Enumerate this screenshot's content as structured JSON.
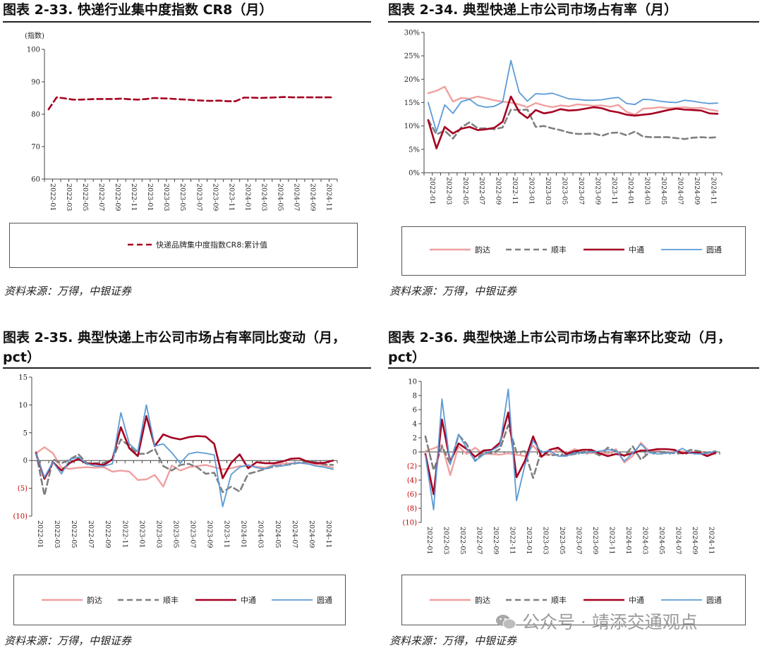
{
  "panels": [
    {
      "title": "图表 2-33. 快递行业集中度指数 CR8（月）",
      "source": "资料来源：万得，中银证券"
    },
    {
      "title": "图表 2-34. 典型快递上市公司市场占有率（月）",
      "source": "资料来源：万得，中银证券"
    },
    {
      "title_line1": "图表 2-35. 典型快递上市公司市场占有率同比变动（月，",
      "title_line2": "pct）",
      "source": "资料来源：万得，中银证券"
    },
    {
      "title_line1": "图表 2-36. 典型快递上市公司市场占有率环比变动（月，",
      "title_line2": "pct）",
      "source": "资料来源：万得，中银证券"
    }
  ],
  "watermark": "公众号 · 靖添交通观点",
  "colors": {
    "yunda": "#f0a0a0",
    "sf": "#7f7f7f",
    "zto": "#a50021",
    "yto": "#5b9bd5",
    "cr8": "#a50021"
  },
  "chart_data": [
    {
      "type": "line",
      "title": "",
      "ylabel": "(指数)",
      "ylim": [
        60,
        100
      ],
      "yticks": [
        "60",
        "70",
        "80",
        "90",
        "100"
      ],
      "x_tick_labels": [
        "2022-01",
        "2022-03",
        "2022-05",
        "2022-07",
        "2022-09",
        "2022-11",
        "2023-01",
        "2023-03",
        "2023-05",
        "2023-07",
        "2023-09",
        "2023-11",
        "2024-01",
        "2024-03",
        "2024-05",
        "2024-07",
        "2024-09",
        "2024-11"
      ],
      "series": [
        {
          "name": "快递品牌集中度指数CR8:累计值",
          "style": "dashed",
          "color": "#a50021",
          "values": [
            81.5,
            85.2,
            84.9,
            84.5,
            84.5,
            84.6,
            84.7,
            84.7,
            84.7,
            84.8,
            84.6,
            84.5,
            84.7,
            85.0,
            84.9,
            84.8,
            84.6,
            84.5,
            84.3,
            84.2,
            84.1,
            84.2,
            84.0,
            84.0,
            85.1,
            85.1,
            85.0,
            85.1,
            85.2,
            85.3,
            85.2,
            85.2,
            85.2,
            85.2,
            85.2,
            85.2
          ]
        }
      ],
      "legend_position": "bottom"
    },
    {
      "type": "line",
      "title": "",
      "ylim": [
        0,
        30
      ],
      "yticks": [
        "0%",
        "5%",
        "10%",
        "15%",
        "20%",
        "25%",
        "30%"
      ],
      "x_tick_labels": [
        "2022-01",
        "2022-03",
        "2022-05",
        "2022-07",
        "2022-09",
        "2022-11",
        "2023-01",
        "2023-03",
        "2023-05",
        "2023-07",
        "2023-09",
        "2023-11",
        "2024-01",
        "2024-03",
        "2024-05",
        "2024-07",
        "2024-09",
        "2024-11"
      ],
      "series": [
        {
          "name": "韵达",
          "style": "solid-light",
          "values": [
            17.0,
            17.5,
            18.4,
            15.2,
            16.0,
            15.8,
            16.3,
            15.9,
            15.5,
            15.2,
            15.0,
            14.6,
            14.0,
            14.9,
            14.4,
            14.0,
            14.4,
            14.2,
            14.6,
            14.5,
            14.3,
            14.4,
            14.1,
            14.5,
            13.0,
            12.4,
            13.7,
            13.8,
            14.0,
            13.8,
            13.9,
            14.0,
            13.8,
            13.9,
            13.5,
            13.2
          ]
        },
        {
          "name": "顺丰",
          "style": "dashed",
          "values": [
            11.3,
            8.2,
            9.0,
            7.3,
            9.7,
            10.8,
            9.5,
            9.5,
            9.3,
            9.7,
            13.5,
            13.4,
            13.5,
            9.8,
            10.0,
            9.5,
            9.1,
            8.6,
            8.3,
            8.3,
            8.4,
            7.9,
            8.5,
            8.6,
            8.0,
            8.8,
            7.7,
            7.6,
            7.6,
            7.6,
            7.4,
            7.2,
            7.5,
            7.6,
            7.5,
            7.6
          ]
        },
        {
          "name": "中通",
          "style": "solid-thick",
          "values": [
            11.2,
            5.2,
            9.8,
            8.4,
            9.4,
            9.8,
            9.1,
            9.3,
            9.6,
            10.9,
            16.3,
            13.0,
            11.7,
            13.4,
            12.7,
            13.0,
            13.6,
            13.3,
            13.4,
            13.7,
            14.0,
            13.8,
            13.2,
            12.9,
            12.4,
            12.2,
            12.4,
            12.6,
            13.0,
            13.4,
            13.7,
            13.5,
            13.4,
            13.3,
            12.7,
            12.6
          ]
        },
        {
          "name": "圆通",
          "style": "solid",
          "values": [
            15.0,
            8.8,
            14.5,
            12.7,
            15.2,
            15.7,
            14.4,
            14.0,
            14.2,
            15.1,
            24.0,
            17.2,
            15.3,
            16.9,
            16.8,
            17.0,
            16.4,
            15.8,
            15.7,
            15.5,
            15.5,
            15.6,
            15.9,
            16.1,
            14.8,
            14.6,
            15.7,
            15.6,
            15.3,
            15.1,
            15.0,
            15.5,
            15.3,
            15.0,
            14.8,
            14.9
          ]
        }
      ],
      "legend_position": "bottom"
    },
    {
      "type": "line",
      "title": "",
      "ylim": [
        -10,
        15
      ],
      "yticks": [
        "(10)",
        "(5)",
        "0",
        "5",
        "10",
        "15"
      ],
      "x_tick_labels": [
        "2022-01",
        "2022-03",
        "2022-05",
        "2022-07",
        "2022-09",
        "2022-11",
        "2023-01",
        "2023-03",
        "2023-05",
        "2023-07",
        "2023-09",
        "2023-11",
        "2024-01",
        "2024-03",
        "2024-05",
        "2024-07",
        "2024-09",
        "2024-11"
      ],
      "series": [
        {
          "name": "韵达",
          "style": "solid-light",
          "values": [
            1.3,
            2.4,
            1.3,
            -1.3,
            -1.5,
            -1.3,
            -1.2,
            -1.3,
            -1.2,
            -2.0,
            -1.8,
            -2.0,
            -3.5,
            -3.4,
            -2.6,
            -4.7,
            -0.9,
            -1.8,
            -1.2,
            -1.0,
            -0.8,
            -1.2,
            -1.6,
            -1.4,
            -1.0,
            -1.0,
            -1.1,
            -1.3,
            -0.8,
            -0.6,
            -0.5,
            -0.4,
            -0.6,
            -0.7,
            -0.9,
            -1.3
          ]
        },
        {
          "name": "顺丰",
          "style": "dashed",
          "values": [
            1.5,
            -6.3,
            0.2,
            -0.5,
            0.2,
            1.1,
            -0.5,
            -0.5,
            -0.4,
            0.2,
            3.8,
            2.6,
            1.2,
            1.2,
            2.1,
            -1.0,
            -1.8,
            -0.8,
            -0.6,
            -1.2,
            -2.4,
            -2.2,
            -5.7,
            -4.7,
            -5.6,
            -2.4,
            -2.0,
            -1.5,
            -1.1,
            -0.9,
            -0.7,
            -0.4,
            -0.2,
            -0.3,
            -0.7,
            -0.8
          ]
        },
        {
          "name": "中通",
          "style": "solid-thick",
          "values": [
            1.3,
            -3.3,
            -0.3,
            -1.8,
            -0.4,
            0.3,
            -0.6,
            -0.6,
            -0.8,
            0.2,
            6.0,
            2.2,
            0.8,
            8.0,
            2.6,
            4.7,
            4.1,
            3.8,
            4.2,
            4.4,
            4.3,
            3.0,
            -3.2,
            -0.4,
            1.1,
            -1.4,
            -0.3,
            -0.5,
            -0.5,
            -0.2,
            0.3,
            0.4,
            -0.2,
            -0.5,
            -0.4,
            0.0
          ]
        },
        {
          "name": "圆通",
          "style": "solid",
          "values": [
            1.2,
            -3.0,
            -0.3,
            -2.4,
            0.2,
            0.6,
            -0.6,
            -1.0,
            -1.0,
            -0.6,
            8.6,
            3.0,
            1.6,
            10.0,
            2.6,
            3.0,
            1.4,
            -0.5,
            1.2,
            1.5,
            1.3,
            1.0,
            -8.3,
            -2.5,
            -1.2,
            -0.8,
            -1.3,
            -1.5,
            -0.9,
            -1.0,
            -0.6,
            -0.4,
            -0.6,
            -1.0,
            -1.2,
            -1.6
          ]
        }
      ],
      "legend_position": "bottom"
    },
    {
      "type": "line",
      "title": "",
      "ylim": [
        -10,
        10
      ],
      "yticks": [
        "(10)",
        "(8)",
        "(6)",
        "(4)",
        "(2)",
        "0",
        "2",
        "4",
        "6",
        "8",
        "10"
      ],
      "x_tick_labels": [
        "2022-01",
        "2022-03",
        "2022-05",
        "2022-07",
        "2022-09",
        "2022-11",
        "2023-01",
        "2023-03",
        "2023-05",
        "2023-07",
        "2023-09",
        "2023-11",
        "2024-01",
        "2024-03",
        "2024-05",
        "2024-07",
        "2024-09",
        "2024-11"
      ],
      "series": [
        {
          "name": "韵达",
          "style": "solid-light",
          "values": [
            0.1,
            0.5,
            1.0,
            -3.3,
            0.8,
            -0.3,
            0.6,
            -0.3,
            -0.3,
            -0.4,
            -0.2,
            -0.4,
            -0.6,
            0.9,
            -0.5,
            -0.4,
            0.4,
            -0.2,
            0.4,
            -0.1,
            -0.2,
            0.1,
            -0.3,
            0.4,
            -1.5,
            -0.6,
            1.3,
            0.1,
            0.2,
            -0.2,
            0.1,
            0.1,
            -0.2,
            0.1,
            -0.4,
            -0.3
          ]
        },
        {
          "name": "顺丰",
          "style": "dashed",
          "values": [
            2.2,
            -2.6,
            0.8,
            -1.7,
            2.4,
            1.1,
            -1.3,
            0.0,
            -0.2,
            0.4,
            3.8,
            -0.1,
            0.1,
            -3.7,
            0.2,
            -0.5,
            -0.4,
            -0.5,
            -0.3,
            0.0,
            0.1,
            -0.5,
            0.6,
            0.1,
            -0.6,
            0.8,
            -1.1,
            -0.1,
            0.0,
            0.0,
            -0.2,
            -0.2,
            0.3,
            0.1,
            -0.1,
            0.1
          ]
        },
        {
          "name": "中通",
          "style": "solid-thick",
          "values": [
            -0.3,
            -6.0,
            4.6,
            -1.4,
            1.2,
            0.4,
            -0.7,
            0.2,
            0.3,
            1.3,
            5.6,
            -3.6,
            -1.3,
            2.2,
            -0.7,
            0.3,
            0.6,
            -0.3,
            0.1,
            0.3,
            0.3,
            -0.2,
            -0.6,
            -0.3,
            -0.5,
            -0.2,
            0.2,
            0.2,
            0.4,
            0.4,
            0.3,
            -0.2,
            -0.1,
            -0.1,
            -0.6,
            -0.1
          ]
        },
        {
          "name": "圆通",
          "style": "solid",
          "values": [
            -0.5,
            -8.2,
            7.5,
            -1.8,
            2.5,
            0.5,
            -1.3,
            -0.4,
            0.2,
            0.9,
            8.9,
            -6.9,
            -1.9,
            1.6,
            -0.1,
            0.2,
            -0.6,
            -0.6,
            -0.1,
            -0.2,
            0.0,
            0.1,
            0.3,
            0.2,
            -1.3,
            -0.2,
            1.1,
            -0.1,
            -0.3,
            -0.2,
            -0.1,
            0.5,
            -0.2,
            -0.3,
            -0.2,
            0.1
          ]
        }
      ],
      "legend_position": "bottom"
    }
  ]
}
